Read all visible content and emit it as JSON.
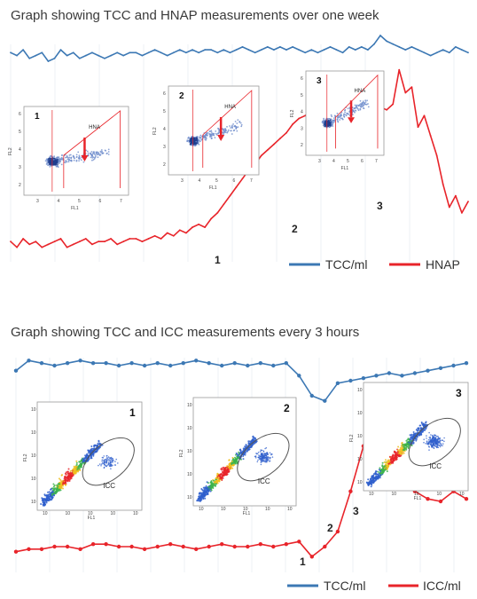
{
  "chart_data": [
    {
      "type": "line",
      "title": "Graph showing TCC and HNAP measurements over one week",
      "series": [
        {
          "name": "TCC/ml",
          "color": "#3c78b4",
          "values": [
            74,
            73,
            75,
            72,
            73,
            74,
            71,
            72,
            75,
            73,
            74,
            72,
            73,
            74,
            73,
            72,
            73,
            74,
            73,
            74,
            74,
            73,
            74,
            75,
            74,
            73,
            74,
            75,
            74,
            75,
            74,
            75,
            75,
            74,
            75,
            74,
            75,
            76,
            75,
            74,
            75,
            76,
            75,
            76,
            75,
            76,
            75,
            74,
            75,
            74,
            75,
            76,
            75,
            74,
            76,
            75,
            76,
            75,
            77,
            80,
            78,
            77,
            76,
            75,
            76,
            75,
            74,
            73,
            74,
            75,
            74,
            76,
            75,
            74
          ]
        },
        {
          "name": "HNAP",
          "color": "#e8242a",
          "values": [
            8,
            6,
            9,
            7,
            8,
            6,
            7,
            8,
            9,
            6,
            7,
            8,
            9,
            7,
            8,
            8,
            9,
            7,
            8,
            9,
            9,
            8,
            9,
            10,
            9,
            11,
            10,
            12,
            11,
            13,
            14,
            13,
            16,
            18,
            21,
            24,
            27,
            30,
            33,
            35,
            38,
            40,
            42,
            44,
            46,
            49,
            51,
            52,
            54,
            56,
            55,
            57,
            55,
            58,
            56,
            57,
            55,
            56,
            57,
            55,
            54,
            56,
            68,
            60,
            62,
            48,
            52,
            45,
            38,
            28,
            20,
            24,
            18,
            22
          ]
        }
      ],
      "annotations": [
        "1",
        "2",
        "3"
      ],
      "legend": "bottom-right"
    },
    {
      "type": "line",
      "title": "Graph showing TCC and ICC measurements every 3 hours",
      "series": [
        {
          "name": "TCC/ml",
          "color": "#3c78b4",
          "values": [
            82,
            86,
            85,
            84,
            85,
            86,
            85,
            85,
            84,
            85,
            84,
            85,
            84,
            85,
            86,
            85,
            84,
            85,
            84,
            85,
            84,
            85,
            80,
            72,
            70,
            77,
            78,
            79,
            80,
            81,
            80,
            81,
            82,
            83,
            84,
            85
          ]
        },
        {
          "name": "ICC/ml",
          "color": "#e8242a",
          "values": [
            10,
            11,
            11,
            12,
            12,
            11,
            13,
            13,
            12,
            12,
            11,
            12,
            13,
            12,
            11,
            12,
            13,
            12,
            12,
            13,
            12,
            13,
            14,
            8,
            12,
            18,
            34,
            52,
            65,
            59,
            45,
            34,
            31,
            30,
            34,
            31
          ]
        }
      ],
      "annotations": [
        "1",
        "2",
        "3"
      ],
      "legend": "bottom-right"
    }
  ],
  "insets_top": [
    {
      "number": "1",
      "gate_label": "HNA",
      "xlabel": "FL1",
      "ylabel": "FL2",
      "xticks": [
        "3",
        "4",
        "5",
        "6",
        "7"
      ],
      "yticks": [
        "2",
        "3",
        "4",
        "5",
        "6"
      ]
    },
    {
      "number": "2",
      "gate_label": "HNA",
      "xlabel": "FL1",
      "ylabel": "FL2",
      "xticks": [
        "3",
        "4",
        "5",
        "6",
        "7"
      ],
      "yticks": [
        "2",
        "3",
        "4",
        "5",
        "6"
      ]
    },
    {
      "number": "3",
      "gate_label": "HNA",
      "xlabel": "FL1",
      "ylabel": "FL2",
      "xticks": [
        "3",
        "4",
        "5",
        "6",
        "7"
      ],
      "yticks": [
        "2",
        "3",
        "4",
        "5",
        "6"
      ]
    }
  ],
  "insets_bottom": [
    {
      "number": "1",
      "gate_label": "ICC",
      "xlabel": "FL1",
      "ylabel": "FL2"
    },
    {
      "number": "2",
      "gate_label": "ICC",
      "xlabel": "FL1",
      "ylabel": "FL2"
    },
    {
      "number": "3",
      "gate_label": "ICC",
      "xlabel": "FL1",
      "ylabel": "FL2"
    }
  ],
  "tick_exponent_labels": [
    "10",
    "10",
    "10",
    "10",
    "10"
  ]
}
